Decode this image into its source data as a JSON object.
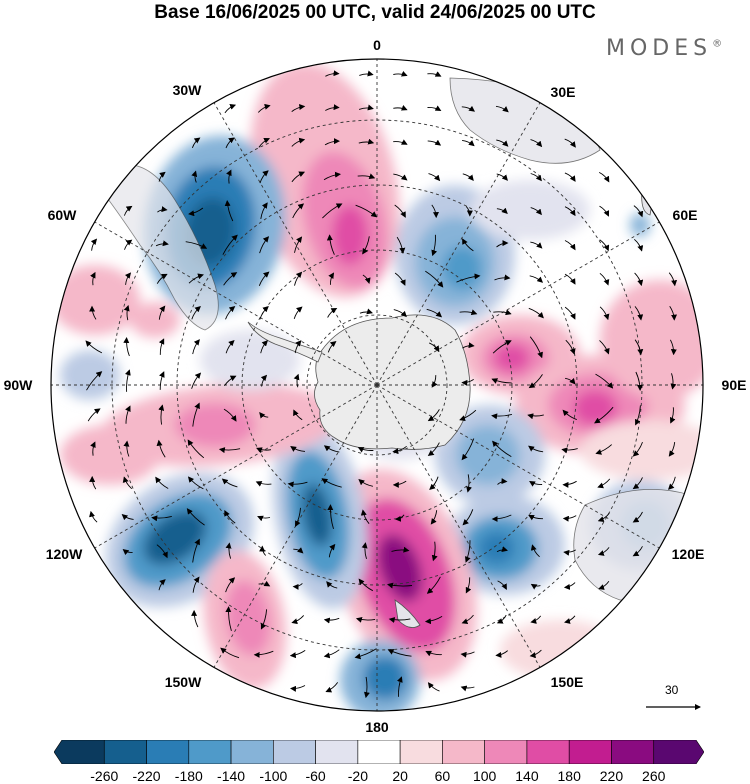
{
  "title": "Base 16/06/2025 00 UTC, valid 24/06/2025 00 UTC",
  "brand": "MODES",
  "brand_mark": "®",
  "longitude_labels": [
    {
      "key": "0",
      "text": "0"
    },
    {
      "key": "30E",
      "text": "30E"
    },
    {
      "key": "60E",
      "text": "60E"
    },
    {
      "key": "90E",
      "text": "90E"
    },
    {
      "key": "120E",
      "text": "120E"
    },
    {
      "key": "150E",
      "text": "150E"
    },
    {
      "key": "180",
      "text": "180"
    },
    {
      "key": "150W",
      "text": "150W"
    },
    {
      "key": "120W",
      "text": "120W"
    },
    {
      "key": "90W",
      "text": "90W"
    },
    {
      "key": "60W",
      "text": "60W"
    },
    {
      "key": "30W",
      "text": "30W"
    }
  ],
  "reference_vector": {
    "value": "30"
  },
  "colorbar": {
    "ticks": [
      "-260",
      "-220",
      "-180",
      "-140",
      "-100",
      "-60",
      "-20",
      "20",
      "60",
      "100",
      "140",
      "180",
      "220",
      "260"
    ],
    "colors": [
      "#0b3a5e",
      "#155f8e",
      "#2a7db5",
      "#4f9ac9",
      "#86b3d8",
      "#bccbe4",
      "#e2e3ef",
      "#ffffff",
      "#f8dcdf",
      "#f5b8c9",
      "#ee88b8",
      "#e04da5",
      "#c21d90",
      "#8a0b80",
      "#5a0770"
    ]
  },
  "colors": {
    "land": "#ececec",
    "coast": "#555555",
    "grid": "#333333",
    "wind": "#000000"
  }
}
